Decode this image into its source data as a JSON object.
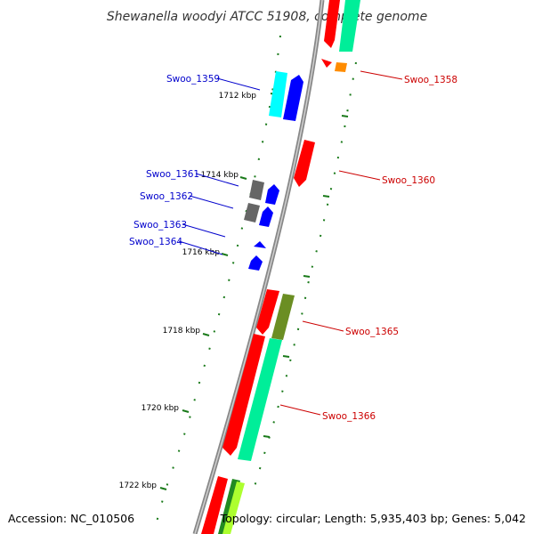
{
  "title": "Shewanella woodyi ATCC 51908, complete genome",
  "footer": {
    "accession": "Accession: NC_010506",
    "topology": "Topology: circular; Length: 5,935,403 bp; Genes: 5,042"
  },
  "ticks": [
    "1712 kbp",
    "1714 kbp",
    "1716 kbp",
    "1718 kbp",
    "1720 kbp",
    "1722 kbp"
  ],
  "genes_minus_strand": [
    "Swoo_1359",
    "Swoo_1361",
    "Swoo_1362",
    "Swoo_1363",
    "Swoo_1364"
  ],
  "genes_plus_strand": [
    "Swoo_1358",
    "Swoo_1360",
    "Swoo_1365",
    "Swoo_1366"
  ],
  "colors": {
    "minus_label": "#0000cc",
    "plus_label": "#cc0000",
    "backbone": "#888888",
    "tick_mark": "#1a7a1a",
    "red_gene": "#ff0000",
    "blue_gene": "#0000ff",
    "cyan_gene": "#00ffff",
    "gray_gene": "#666666",
    "mint_gene": "#00ee99",
    "olive_gene": "#6b8e23",
    "orange_gene": "#ff8c00",
    "green_gene": "#228b22",
    "lime_gene": "#adff2f"
  }
}
